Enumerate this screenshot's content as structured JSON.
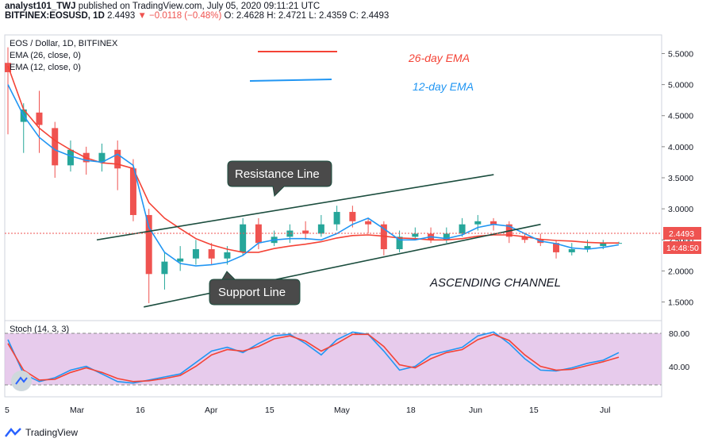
{
  "header": {
    "author": "analyst101_TWJ",
    "published": "published on TradingView.com, July 05, 2020 09:11:21 UTC",
    "symbol_line": "BITFINEX:EOSUSD, 1D",
    "last": "2.4493",
    "change": "−0.0118 (−0.48%)",
    "ohlc": "O: 2.4628 H: 2.4721 L: 2.4359 C: 2.4493"
  },
  "legend": {
    "title": "EOS / Dollar, 1D, BITFINEX",
    "ema26": "EMA (26, close, 0)",
    "ema12": "EMA (12, close, 0)",
    "stoch": "Stoch (14, 3, 3)"
  },
  "annotations": {
    "ema26_label": "26-day EMA",
    "ema12_label": "12-day EMA",
    "resistance": "Resistance Line",
    "support": "Support Line",
    "channel": "ASCENDING CHANNEL"
  },
  "price_badge": "2.4493",
  "time_badge": "14:48:50",
  "footer": {
    "brand": "TradingView"
  },
  "colors": {
    "up": "#26a69a",
    "down": "#ef5350",
    "ema26": "#f44336",
    "ema12": "#2196f3",
    "channel": "#1b4d3e",
    "stoch_bg": "#e1bee7",
    "callout": "#4a4a4a"
  },
  "chart_data": {
    "type": "line",
    "title": "EOS / Dollar, 1D, BITFINEX",
    "y_ticks": [
      "5.5000",
      "5.0000",
      "4.5000",
      "4.0000",
      "3.5000",
      "3.0000",
      "2.5000",
      "2.0000",
      "1.5000"
    ],
    "x_ticks": [
      "5",
      "Mar",
      "16",
      "Apr",
      "15",
      "May",
      "18",
      "Jun",
      "15",
      "Jul"
    ],
    "stoch_ticks": [
      "80.00",
      "40.00"
    ],
    "ylim": [
      1.2,
      5.8
    ],
    "series": [
      {
        "name": "EMA (26, close, 0)",
        "values": [
          5.3,
          4.6,
          4.3,
          4.1,
          3.95,
          3.82,
          3.74,
          3.72,
          3.65,
          3.1,
          2.85,
          2.68,
          2.52,
          2.42,
          2.35,
          2.3,
          2.3,
          2.36,
          2.4,
          2.43,
          2.47,
          2.53,
          2.57,
          2.58,
          2.56,
          2.53,
          2.52,
          2.5,
          2.5,
          2.52,
          2.56,
          2.58,
          2.58,
          2.55,
          2.51,
          2.49,
          2.48,
          2.46,
          2.45,
          2.45
        ]
      },
      {
        "name": "EMA (12, close, 0)",
        "values": [
          5.0,
          4.5,
          4.15,
          3.95,
          3.85,
          3.78,
          3.75,
          3.88,
          3.7,
          2.7,
          2.3,
          2.12,
          2.08,
          2.1,
          2.14,
          2.25,
          2.45,
          2.5,
          2.52,
          2.52,
          2.5,
          2.6,
          2.75,
          2.85,
          2.68,
          2.5,
          2.5,
          2.55,
          2.52,
          2.58,
          2.7,
          2.75,
          2.72,
          2.6,
          2.48,
          2.44,
          2.37,
          2.35,
          2.38,
          2.42
        ]
      },
      {
        "name": "Stoch %K",
        "values": [
          75,
          30,
          20,
          25,
          35,
          40,
          30,
          20,
          18,
          22,
          26,
          30,
          45,
          60,
          65,
          58,
          70,
          80,
          82,
          70,
          55,
          75,
          85,
          82,
          60,
          35,
          40,
          55,
          60,
          65,
          80,
          85,
          70,
          50,
          35,
          34,
          38,
          44,
          48,
          58
        ]
      },
      {
        "name": "Stoch %D",
        "values": [
          70,
          35,
          22,
          23,
          32,
          38,
          32,
          24,
          20,
          21,
          24,
          28,
          40,
          55,
          62,
          60,
          66,
          76,
          80,
          73,
          60,
          70,
          82,
          82,
          66,
          42,
          38,
          50,
          58,
          62,
          75,
          82,
          74,
          55,
          40,
          35,
          36,
          41,
          46,
          52
        ]
      }
    ],
    "candles": [
      [
        5.35,
        5.2,
        5.6,
        4.2
      ],
      [
        4.4,
        4.6,
        4.7,
        3.9
      ],
      [
        4.55,
        4.35,
        4.9,
        3.9
      ],
      [
        4.3,
        3.7,
        4.4,
        3.5
      ],
      [
        3.7,
        3.95,
        4.1,
        3.6
      ],
      [
        3.9,
        3.75,
        4.0,
        3.55
      ],
      [
        3.75,
        3.9,
        4.05,
        3.6
      ],
      [
        3.95,
        3.65,
        4.1,
        3.3
      ],
      [
        3.65,
        2.9,
        3.8,
        2.8
      ],
      [
        2.9,
        1.95,
        3.0,
        1.48
      ],
      [
        1.95,
        2.15,
        2.3,
        1.7
      ],
      [
        2.15,
        2.2,
        2.4,
        2.0
      ],
      [
        2.2,
        2.35,
        2.5,
        2.1
      ],
      [
        2.35,
        2.2,
        2.45,
        2.1
      ],
      [
        2.2,
        2.3,
        2.4,
        2.1
      ],
      [
        2.3,
        2.75,
        2.85,
        2.25
      ],
      [
        2.75,
        2.45,
        2.85,
        2.35
      ],
      [
        2.45,
        2.55,
        2.65,
        2.4
      ],
      [
        2.55,
        2.65,
        2.75,
        2.45
      ],
      [
        2.65,
        2.6,
        2.8,
        2.5
      ],
      [
        2.6,
        2.75,
        2.9,
        2.55
      ],
      [
        2.75,
        2.95,
        3.05,
        2.65
      ],
      [
        2.95,
        2.8,
        3.05,
        2.7
      ],
      [
        2.8,
        2.75,
        2.85,
        2.6
      ],
      [
        2.75,
        2.35,
        2.8,
        2.25
      ],
      [
        2.35,
        2.55,
        2.65,
        2.3
      ],
      [
        2.55,
        2.6,
        2.7,
        2.5
      ],
      [
        2.6,
        2.5,
        2.7,
        2.45
      ],
      [
        2.5,
        2.6,
        2.7,
        2.45
      ],
      [
        2.6,
        2.75,
        2.85,
        2.55
      ],
      [
        2.75,
        2.8,
        2.9,
        2.65
      ],
      [
        2.8,
        2.75,
        2.85,
        2.65
      ],
      [
        2.75,
        2.55,
        2.8,
        2.45
      ],
      [
        2.55,
        2.5,
        2.6,
        2.45
      ],
      [
        2.5,
        2.45,
        2.6,
        2.4
      ],
      [
        2.45,
        2.3,
        2.5,
        2.2
      ],
      [
        2.3,
        2.35,
        2.45,
        2.25
      ],
      [
        2.35,
        2.4,
        2.5,
        2.3
      ],
      [
        2.4,
        2.45,
        2.5,
        2.35
      ],
      [
        2.45,
        2.45,
        2.47,
        2.44
      ]
    ],
    "resistance_line": [
      [
        0,
        2.5
      ],
      [
        30,
        3.55
      ]
    ],
    "support_line": [
      [
        3,
        1.42
      ],
      [
        33,
        2.75
      ]
    ],
    "grid": false
  }
}
